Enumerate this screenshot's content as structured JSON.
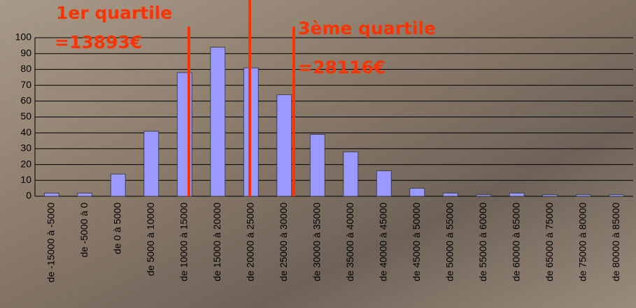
{
  "chart_data": {
    "type": "bar",
    "categories": [
      "de -15000 à -5000",
      "de -5000 à 0",
      "de 0 à 5000",
      "de 5000 à 10000",
      "de 10000 à 15000",
      "de 15000 à 20000",
      "de 20000 à 25000",
      "de 25000 à 30000",
      "de 30000 à 35000",
      "de 35000 à 40000",
      "de 40000 à 45000",
      "de 45000 à 50000",
      "de 50000 à 55000",
      "de 55000 à 60000",
      "de 60000 à 65000",
      "de 65000 à 75000",
      "de 75000 à 80000",
      "de 80000 à 85000"
    ],
    "values": [
      2,
      2,
      14,
      41,
      78,
      94,
      81,
      64,
      39,
      28,
      16,
      5,
      2,
      1,
      2,
      1,
      1,
      1
    ],
    "color": "#9999ff",
    "ylim": [
      0,
      100
    ],
    "yticks": [
      0,
      10,
      20,
      30,
      40,
      50,
      60,
      70,
      80,
      90,
      100
    ],
    "grid": true,
    "annotations": [
      "1er quartile",
      "=13893€",
      "3ème quartile",
      "=28116€"
    ]
  }
}
